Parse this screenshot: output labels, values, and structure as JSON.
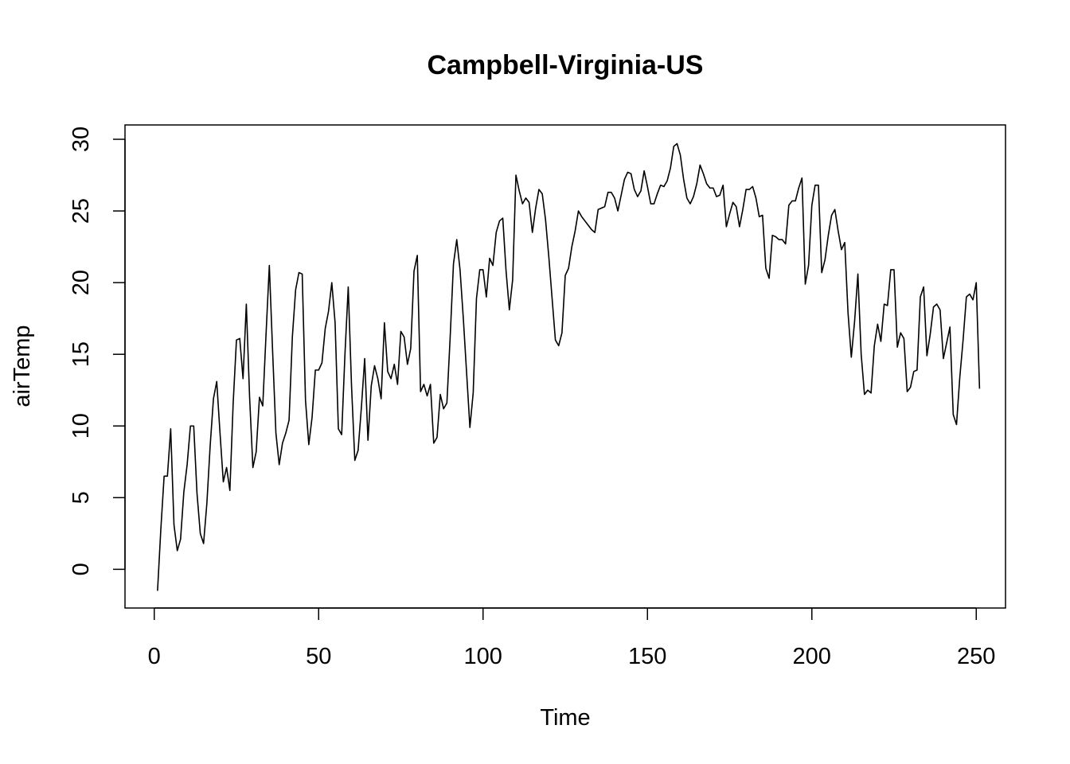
{
  "chart_data": {
    "type": "line",
    "title": "Campbell-Virginia-US",
    "xlabel": "Time",
    "ylabel": "airTemp",
    "xlim": [
      -8.9,
      258.9
    ],
    "ylim": [
      -2.7,
      31.0
    ],
    "xticks": [
      0,
      50,
      100,
      150,
      200,
      250
    ],
    "yticks": [
      0,
      5,
      10,
      15,
      20,
      25,
      30
    ],
    "grid": false,
    "box": true,
    "line_color": "#000000",
    "series": [
      {
        "x_start": 1,
        "values": [
          -1.5,
          2.8,
          6.5,
          6.5,
          9.8,
          3.1,
          1.3,
          2.1,
          5.4,
          7.3,
          10.0,
          10.0,
          5.3,
          2.5,
          1.8,
          4.6,
          8.6,
          11.9,
          13.1,
          9.5,
          6.1,
          7.1,
          5.5,
          11.6,
          16.0,
          16.1,
          13.3,
          18.5,
          12.0,
          7.1,
          8.2,
          12.0,
          11.4,
          16.4,
          21.2,
          15.2,
          9.5,
          7.3,
          8.8,
          9.5,
          10.4,
          16.2,
          19.5,
          20.7,
          20.6,
          11.8,
          8.7,
          10.6,
          13.9,
          13.9,
          14.4,
          16.8,
          18.0,
          20.0,
          17.2,
          9.8,
          9.4,
          15.0,
          19.7,
          12.8,
          7.6,
          8.3,
          11.3,
          14.7,
          9.0,
          12.8,
          14.2,
          13.3,
          11.9,
          17.2,
          13.8,
          13.3,
          14.3,
          12.9,
          16.6,
          16.2,
          14.3,
          15.4,
          20.8,
          21.9,
          12.4,
          12.9,
          12.1,
          12.9,
          8.8,
          9.2,
          12.2,
          11.2,
          11.6,
          16.2,
          21.3,
          23.0,
          20.9,
          17.5,
          13.7,
          9.9,
          12.3,
          18.9,
          20.9,
          20.9,
          19.0,
          21.7,
          21.2,
          23.5,
          24.3,
          24.5,
          20.8,
          18.1,
          20.2,
          27.5,
          26.4,
          25.5,
          25.9,
          25.6,
          23.5,
          25.2,
          26.5,
          26.2,
          24.4,
          21.8,
          18.9,
          16.0,
          15.6,
          16.5,
          20.5,
          21.0,
          22.5,
          23.6,
          25.0,
          24.6,
          24.3,
          24.0,
          23.7,
          23.5,
          25.1,
          25.2,
          25.3,
          26.3,
          26.3,
          25.9,
          25.0,
          26.1,
          27.2,
          27.7,
          27.6,
          26.5,
          26.0,
          26.4,
          27.8,
          26.7,
          25.5,
          25.5,
          26.2,
          26.8,
          26.7,
          27.1,
          28.0,
          29.5,
          29.7,
          28.9,
          27.2,
          25.9,
          25.5,
          26.0,
          26.9,
          28.2,
          27.6,
          26.9,
          26.6,
          26.6,
          26.0,
          26.1,
          26.8,
          23.9,
          24.8,
          25.6,
          25.3,
          23.9,
          25.1,
          26.5,
          26.5,
          26.7,
          25.9,
          24.6,
          24.7,
          21.0,
          20.3,
          23.3,
          23.2,
          23.0,
          23.0,
          22.7,
          25.4,
          25.7,
          25.7,
          26.6,
          27.3,
          19.9,
          21.2,
          25.4,
          26.8,
          26.8,
          20.7,
          21.6,
          23.3,
          24.7,
          25.1,
          23.6,
          22.3,
          22.8,
          17.9,
          14.8,
          17.3,
          20.6,
          15.0,
          12.2,
          12.5,
          12.3,
          15.6,
          17.1,
          15.9,
          18.5,
          18.4,
          20.9,
          20.9,
          15.5,
          16.5,
          16.1,
          12.4,
          12.7,
          13.8,
          13.9,
          19.0,
          19.7,
          14.9,
          16.4,
          18.3,
          18.5,
          18.1,
          14.7,
          15.8,
          16.9,
          10.8,
          10.1,
          13.4,
          16.0,
          19.0,
          19.2,
          18.8,
          20.0,
          12.6
        ]
      }
    ]
  }
}
